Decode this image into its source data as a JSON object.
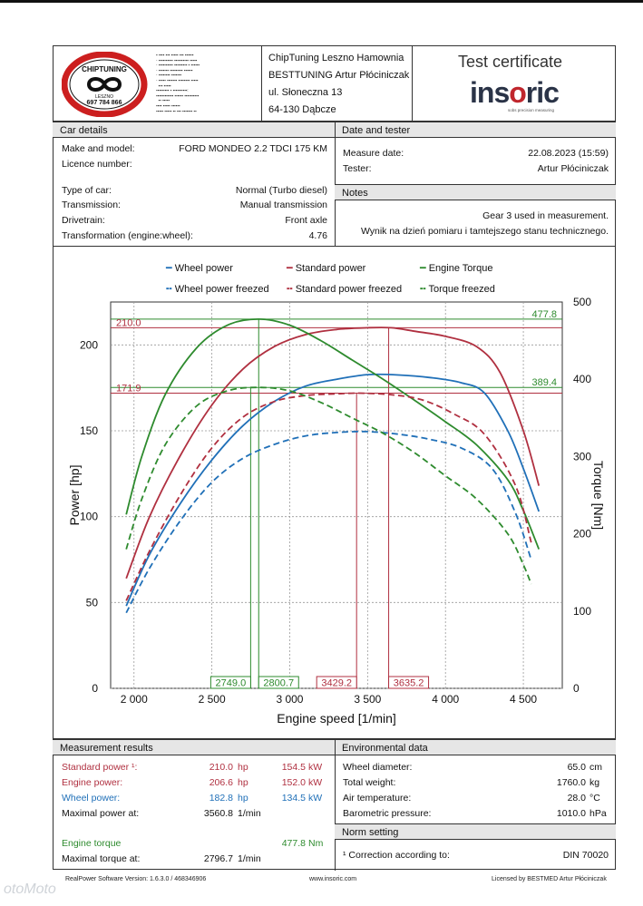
{
  "header": {
    "logo_text_top": "CHIPTUNING",
    "logo_text_mid": "LESZNO",
    "logo_phone": "697 784 866",
    "shop_lines": [
      "ChipTuning Leszno Hamownia",
      "BESTTUNING Artur Płóciniczak",
      "ul. Słoneczna 13",
      "64-130 Dąbcze"
    ],
    "cert_title": "Test certificate",
    "brand_main": "ins",
    "brand_o": "o",
    "brand_end": "ric",
    "brand_tagline": "sobs precision measuring"
  },
  "car_details": {
    "title": "Car details",
    "make_label": "Make and model:",
    "make_value": "FORD MONDEO 2.2 TDCI 175 KM",
    "licence_label": "Licence number:",
    "licence_value": "",
    "type_label": "Type of car:",
    "type_value": "Normal (Turbo diesel)",
    "transmission_label": "Transmission:",
    "transmission_value": "Manual transmission",
    "drivetrain_label": "Drivetrain:",
    "drivetrain_value": "Front axle",
    "transform_label": "Transformation (engine:wheel):",
    "transform_value": "4.76"
  },
  "date_tester": {
    "title": "Date and tester",
    "date_label": "Measure date:",
    "date_value": "22.08.2023 (15:59)",
    "tester_label": "Tester:",
    "tester_value": "Artur Płóciniczak"
  },
  "notes": {
    "title": "Notes",
    "line1": "Gear 3 used in measurement.",
    "line2": "Wynik na dzień pomiaru i tamtejszego stanu technicznego."
  },
  "legend": {
    "wheel": "Wheel power",
    "standard": "Standard power",
    "torque": "Engine Torque",
    "wheel_f": "Wheel power freezed",
    "standard_f": "Standard power freezed",
    "torque_f": "Torque freezed"
  },
  "colors": {
    "red": "#b03040",
    "blue": "#2070b8",
    "green": "#2e8b2e"
  },
  "chart_data": {
    "type": "line",
    "xlabel": "Engine speed [1/min]",
    "ylabel": "Power [hp]",
    "y2label": "Torque [Nm]",
    "xlim": [
      1850,
      4750
    ],
    "ylim": [
      0,
      225
    ],
    "y2lim": [
      0,
      500
    ],
    "x_ticks": [
      2000,
      2500,
      3000,
      3500,
      4000,
      4500
    ],
    "x_tick_labels": [
      "2 000",
      "2 500",
      "3 000",
      "3 500",
      "4 000",
      "4 500"
    ],
    "y_ticks": [
      0,
      50,
      100,
      150,
      200
    ],
    "y2_ticks": [
      0,
      100,
      200,
      300,
      400,
      500
    ],
    "grid": true,
    "series": [
      {
        "name": "Wheel power",
        "axis": "left",
        "style": "solid",
        "color": "#2070b8",
        "x": [
          1950,
          2100,
          2300,
          2500,
          2700,
          2900,
          3100,
          3300,
          3500,
          3700,
          3900,
          4100,
          4250,
          4400,
          4500,
          4600
        ],
        "y": [
          48,
          78,
          108,
          133,
          153,
          167,
          176,
          180,
          182.7,
          182.5,
          181,
          178,
          172,
          150,
          128,
          103
        ]
      },
      {
        "name": "Standard power",
        "axis": "left",
        "style": "solid",
        "color": "#b03040",
        "x": [
          1950,
          2100,
          2300,
          2500,
          2700,
          2900,
          3100,
          3300,
          3500,
          3650,
          3800,
          4000,
          4200,
          4350,
          4500,
          4600
        ],
        "y": [
          64,
          100,
          136,
          165,
          186,
          199,
          206,
          209,
          210,
          210,
          208,
          205,
          199,
          184,
          150,
          118
        ]
      },
      {
        "name": "Engine Torque",
        "axis": "right",
        "style": "solid",
        "color": "#2e8b2e",
        "x": [
          1950,
          2050,
          2200,
          2400,
          2600,
          2800,
          3000,
          3200,
          3400,
          3600,
          3800,
          4000,
          4200,
          4400,
          4500,
          4600
        ],
        "y": [
          225,
          300,
          380,
          440,
          470,
          477.8,
          470,
          450,
          425,
          400,
          373,
          345,
          315,
          270,
          230,
          180
        ]
      },
      {
        "name": "Wheel power freezed",
        "axis": "left",
        "style": "dashed",
        "color": "#2070b8",
        "x": [
          1950,
          2100,
          2300,
          2500,
          2700,
          2900,
          3100,
          3300,
          3500,
          3700,
          3900,
          4100,
          4300,
          4450,
          4550
        ],
        "y": [
          44,
          70,
          98,
          120,
          134,
          142,
          147,
          149,
          149.5,
          148,
          145,
          140,
          128,
          102,
          75
        ]
      },
      {
        "name": "Standard power freezed",
        "axis": "left",
        "style": "dashed",
        "color": "#b03040",
        "x": [
          1950,
          2100,
          2300,
          2500,
          2700,
          2900,
          3100,
          3300,
          3450,
          3650,
          3850,
          4050,
          4250,
          4450,
          4550
        ],
        "y": [
          51,
          80,
          113,
          140,
          158,
          167,
          170.5,
          171.5,
          171.9,
          171,
          168,
          160,
          148,
          118,
          85
        ]
      },
      {
        "name": "Torque freezed",
        "axis": "right",
        "style": "dashed",
        "color": "#2e8b2e",
        "x": [
          1950,
          2050,
          2200,
          2400,
          2600,
          2800,
          3000,
          3200,
          3400,
          3600,
          3800,
          4000,
          4200,
          4400,
          4500,
          4550
        ],
        "y": [
          180,
          245,
          315,
          365,
          385,
          389.4,
          385,
          370,
          350,
          330,
          305,
          275,
          245,
          200,
          160,
          135
        ]
      }
    ],
    "markers": {
      "peak_power_label": "210.0",
      "peak_torque_label": "477.8",
      "freezed_power_label": "171.9",
      "freezed_torque_label": "389.4",
      "rpm_labels": [
        "2749.0",
        "2800.7",
        "3429.2",
        "3635.2"
      ],
      "rpm_values": [
        2749.0,
        2800.7,
        3429.2,
        3635.2
      ]
    }
  },
  "measurement": {
    "title": "Measurement results",
    "std_label": "Standard power ¹:",
    "std_hp": "210.0",
    "std_kw": "154.5",
    "eng_label": "Engine power:",
    "eng_hp": "206.6",
    "eng_kw": "152.0",
    "wheel_label": "Wheel power:",
    "wheel_hp": "182.8",
    "wheel_kw": "134.5",
    "maxp_label": "Maximal power at:",
    "maxp_rpm": "3560.8",
    "torque_label": "Engine torque",
    "torque_nm": "477.8",
    "maxt_label": "Maximal torque at:",
    "maxt_rpm": "2796.7",
    "unit_hp": "hp",
    "unit_kw": "kW",
    "unit_rpm": "1/min",
    "unit_nm": "Nm"
  },
  "environment": {
    "title": "Environmental data",
    "wheel_d_label": "Wheel diameter:",
    "wheel_d_value": "65.0",
    "wheel_d_unit": "cm",
    "weight_label": "Total weight:",
    "weight_value": "1760.0",
    "weight_unit": "kg",
    "air_label": "Air temperature:",
    "air_value": "28.0",
    "air_unit": "°C",
    "baro_label": "Barometric pressure:",
    "baro_value": "1010.0",
    "baro_unit": "hPa"
  },
  "norm": {
    "title": "Norm setting",
    "label": "¹ Correction according to:",
    "value": "DIN 70020"
  },
  "footer": {
    "left": "RealPower Software Version: 1.6.3.0 / 468346906",
    "mid": "www.insoric.com",
    "right": "Licensed by BESTMED Artur Płóciniczak"
  },
  "watermark": "otoMoto"
}
